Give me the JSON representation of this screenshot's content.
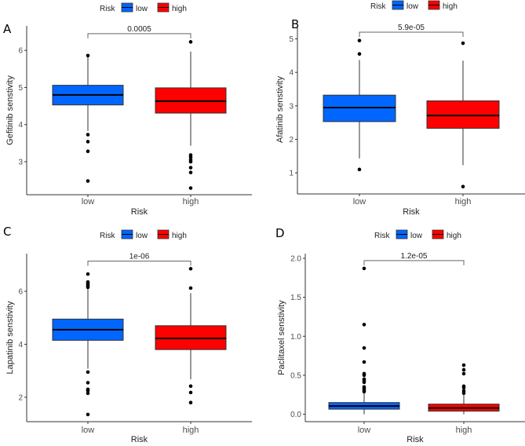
{
  "colors": {
    "low": "#0066ff",
    "high": "#ff0000"
  },
  "chart_data": [
    {
      "type": "box",
      "panel": "A",
      "legend_title": "Risk",
      "legend_labels": [
        "low",
        "high"
      ],
      "legend_position": "top",
      "xlabel": "Risk",
      "ylabel": "Gefitinib senstivity",
      "categories": [
        "low",
        "high"
      ],
      "yticks": [
        "3",
        "4",
        "5",
        "6"
      ],
      "ylim": [
        2.11,
        6.66
      ],
      "pvalue": "0.0005",
      "bracket_y": 6.45,
      "series": [
        {
          "name": "low",
          "q1": 4.53,
          "median": 4.8,
          "q3": 5.06,
          "whisker_low": 3.83,
          "whisker_high": 5.82,
          "outliers": [
            5.86,
            3.73,
            3.54,
            3.28,
            2.48
          ]
        },
        {
          "name": "high",
          "q1": 4.31,
          "median": 4.63,
          "q3": 4.99,
          "whisker_low": 3.43,
          "whisker_high": 5.97,
          "outliers": [
            6.23,
            3.18,
            3.12,
            3.05,
            3.0,
            2.84,
            2.71,
            2.29
          ]
        }
      ]
    },
    {
      "type": "box",
      "panel": "B",
      "legend_title": "Risk",
      "legend_labels": [
        "low",
        "high"
      ],
      "legend_position": "top",
      "xlabel": "Risk",
      "ylabel": "Afatinib senstivity",
      "categories": [
        "low",
        "high"
      ],
      "yticks": [
        "1",
        "2",
        "3",
        "4",
        "5"
      ],
      "ylim": [
        0.37,
        5.41
      ],
      "pvalue": "5.9e-05",
      "bracket_y": 5.2,
      "series": [
        {
          "name": "low",
          "q1": 2.53,
          "median": 2.95,
          "q3": 3.32,
          "whisker_low": 1.43,
          "whisker_high": 4.37,
          "outliers": [
            4.95,
            4.55,
            1.1
          ]
        },
        {
          "name": "high",
          "q1": 2.33,
          "median": 2.71,
          "q3": 3.15,
          "whisker_low": 1.23,
          "whisker_high": 4.35,
          "outliers": [
            4.87,
            0.59
          ]
        }
      ]
    },
    {
      "type": "box",
      "panel": "C",
      "legend_title": "Risk",
      "legend_labels": [
        "low",
        "high"
      ],
      "legend_position": "top",
      "xlabel": "Risk",
      "ylabel": "Lapatinib senstivity",
      "categories": [
        "low",
        "high"
      ],
      "yticks": [
        "2",
        "4",
        "6"
      ],
      "ylim": [
        1.08,
        7.42
      ],
      "pvalue": "1e-06",
      "bracket_y": 7.14,
      "series": [
        {
          "name": "low",
          "q1": 4.15,
          "median": 4.55,
          "q3": 4.95,
          "whisker_low": 3.08,
          "whisker_high": 6.1,
          "outliers": [
            6.65,
            6.35,
            6.3,
            6.25,
            6.2,
            6.15,
            2.95,
            2.55,
            2.3,
            2.25,
            2.15,
            1.35
          ]
        },
        {
          "name": "high",
          "q1": 3.8,
          "median": 4.22,
          "q3": 4.7,
          "whisker_low": 2.68,
          "whisker_high": 5.93,
          "outliers": [
            6.85,
            6.12,
            2.42,
            2.18,
            1.8
          ]
        }
      ]
    },
    {
      "type": "box",
      "panel": "D",
      "legend_title": "Risk",
      "legend_labels": [
        "low",
        "high"
      ],
      "legend_position": "top",
      "xlabel": "Risk",
      "ylabel": "Paclitaxel senstivity",
      "categories": [
        "low",
        "high"
      ],
      "yticks": [
        "0.0",
        "0.5",
        "1.0",
        "1.5",
        "2.0"
      ],
      "ylim": [
        -0.095,
        2.06
      ],
      "pvalue": "1.2e-05",
      "bracket_y": 1.97,
      "series": [
        {
          "name": "low",
          "q1": 0.065,
          "median": 0.105,
          "q3": 0.15,
          "whisker_low": 0.0,
          "whisker_high": 0.28,
          "outliers": [
            1.87,
            1.15,
            0.85,
            0.67,
            0.52,
            0.5,
            0.45,
            0.43,
            0.41,
            0.35,
            0.33,
            0.31,
            0.29
          ]
        },
        {
          "name": "high",
          "q1": 0.04,
          "median": 0.08,
          "q3": 0.13,
          "whisker_low": 0.0,
          "whisker_high": 0.26,
          "outliers": [
            0.63,
            0.57,
            0.52,
            0.36,
            0.34,
            0.3,
            0.27
          ]
        }
      ]
    }
  ]
}
